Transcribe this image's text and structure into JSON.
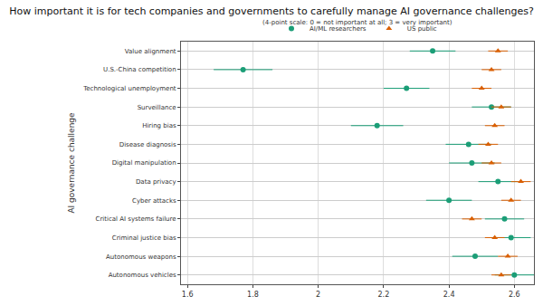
{
  "chart_data": {
    "type": "scatter",
    "title": "How important it is for tech companies and governments to carefully manage AI governance challenges?",
    "subtitle": "(4-point scale: 0 = not important at all; 3 = very important)",
    "y_label": "AI governance challenge",
    "categories": [
      "Value alignment",
      "U.S.-China competition",
      "Technological unemployment",
      "Surveillance",
      "Hiring bias",
      "Disease diagnosis",
      "Digital manipulation",
      "Data privacy",
      "Cyber attacks",
      "Critical AI systems failure",
      "Criminal justice bias",
      "Autonomous weapons",
      "Autonomous vehicles"
    ],
    "series": [
      {
        "name": "AI/ML researchers",
        "color": "#1b9e77",
        "marker": "circle",
        "values": [
          2.35,
          1.77,
          2.27,
          2.53,
          2.18,
          2.46,
          2.47,
          2.55,
          2.4,
          2.57,
          2.59,
          2.48,
          2.6
        ],
        "error": [
          0.07,
          0.09,
          0.07,
          0.06,
          0.08,
          0.07,
          0.07,
          0.06,
          0.07,
          0.06,
          0.06,
          0.07,
          0.06
        ]
      },
      {
        "name": "US public",
        "color": "#d95f02",
        "marker": "triangle-up",
        "values": [
          2.55,
          2.53,
          2.5,
          2.56,
          2.54,
          2.52,
          2.53,
          2.62,
          2.59,
          2.47,
          2.54,
          2.58,
          2.56
        ],
        "error": [
          0.03,
          0.03,
          0.03,
          0.03,
          0.03,
          0.03,
          0.03,
          0.03,
          0.03,
          0.03,
          0.03,
          0.03,
          0.03
        ]
      }
    ],
    "xlim": [
      1.58,
      2.66
    ],
    "xticks": [
      1.6,
      1.8,
      2,
      2.2,
      2.4,
      2.6
    ],
    "grid": true,
    "legend": "top"
  }
}
